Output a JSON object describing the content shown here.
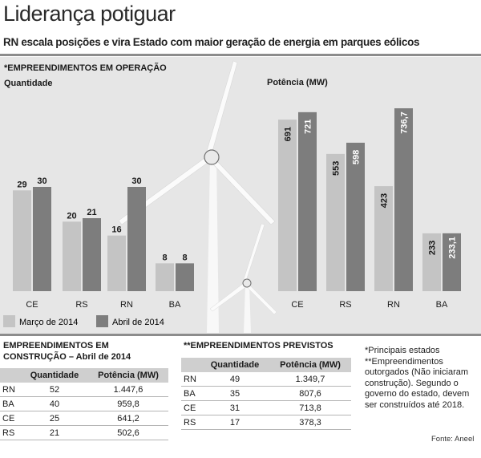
{
  "header": {
    "title": "Liderança potiguar",
    "subtitle": "RN escala posições e vira Estado com maior geração de energia em parques eólicos"
  },
  "operation": {
    "section_label": "*EMPREENDIMENTOS EM OPERAÇÃO",
    "quantity_label": "Quantidade",
    "power_label": "Potência (MW)"
  },
  "legend": {
    "march": "Março de 2014",
    "april": "Abril de 2014"
  },
  "colors": {
    "march": "#c4c4c4",
    "april": "#7d7d7d",
    "panel": "#e6e6e6"
  },
  "chart_data": [
    {
      "type": "bar",
      "title": "Quantidade",
      "categories": [
        "CE",
        "RS",
        "RN",
        "BA"
      ],
      "series": [
        {
          "name": "Março de 2014",
          "values": [
            29,
            20,
            16,
            8
          ],
          "labels": [
            "29",
            "20",
            "16",
            "8"
          ]
        },
        {
          "name": "Abril de 2014",
          "values": [
            30,
            21,
            30,
            8
          ],
          "labels": [
            "30",
            "21",
            "30",
            "8"
          ]
        }
      ],
      "ylim": [
        0,
        30
      ]
    },
    {
      "type": "bar",
      "title": "Potência (MW)",
      "categories": [
        "CE",
        "RS",
        "RN",
        "BA"
      ],
      "series": [
        {
          "name": "Março de 2014",
          "values": [
            691,
            553,
            423,
            233
          ],
          "labels": [
            "691",
            "553",
            "423",
            "233"
          ]
        },
        {
          "name": "Abril de 2014",
          "values": [
            721,
            598,
            736.7,
            233.1
          ],
          "labels": [
            "721",
            "598",
            "736,7",
            "233,1"
          ]
        }
      ],
      "ylim": [
        0,
        736.7
      ]
    }
  ],
  "construction": {
    "title": "EMPREENDIMENTOS EM CONSTRUÇÃO – Abril de 2014",
    "headers": [
      "",
      "Quantidade",
      "Potência (MW)"
    ],
    "rows": [
      [
        "RN",
        "52",
        "1.447,6"
      ],
      [
        "BA",
        "40",
        "959,8"
      ],
      [
        "CE",
        "25",
        "641,2"
      ],
      [
        "RS",
        "21",
        "502,6"
      ]
    ]
  },
  "planned": {
    "title": "**EMPREENDIMENTOS PREVISTOS",
    "headers": [
      "",
      "Quantidade",
      "Potência (MW)"
    ],
    "rows": [
      [
        "RN",
        "49",
        "1.349,7"
      ],
      [
        "BA",
        "35",
        "807,6"
      ],
      [
        "CE",
        "31",
        "713,8"
      ],
      [
        "RS",
        "17",
        "378,3"
      ]
    ]
  },
  "notes": {
    "note1": "*Principais estados",
    "note2": "**Empreendimentos outorgados (Não iniciaram construção). Segundo o governo do estado, devem ser construídos até 2018."
  },
  "source": "Fonte: Aneel"
}
